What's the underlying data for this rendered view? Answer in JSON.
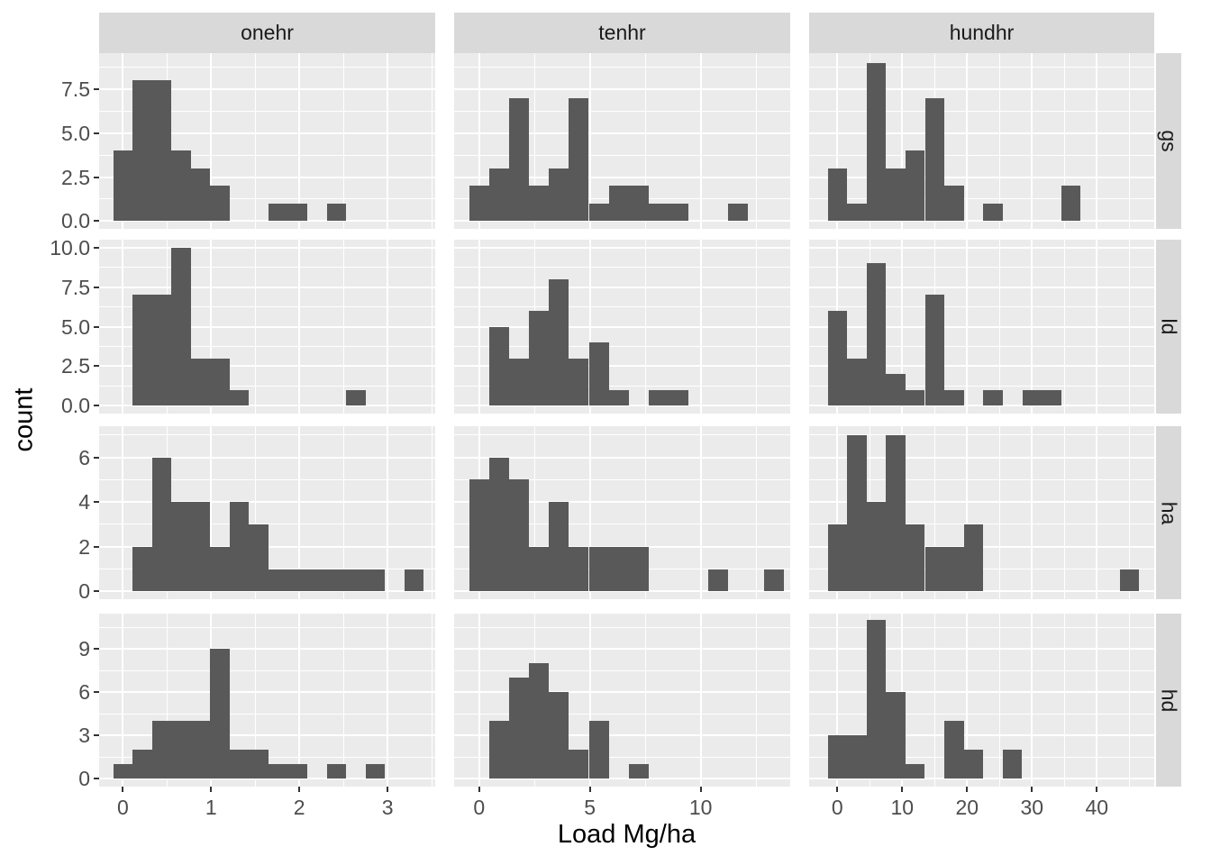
{
  "figure": {
    "xlab": "Load Mg/ha",
    "ylab": "count"
  },
  "colors": {
    "bar_fill": "#595959",
    "panel_background": "#EBEBEB",
    "strip_background": "#D9D9D9",
    "gridline": "#FFFFFF",
    "tick_mark": "#333333",
    "tick_label_text": "#4D4D4D",
    "strip_text": "#1A1A1A",
    "axis_title_text": "#000000",
    "page_background": "#FFFFFF"
  },
  "chart_data": {
    "type": "bar",
    "subtype": "faceted-histogram-grid",
    "title": "",
    "xlabel": "Load Mg/ha",
    "ylabel": "count",
    "grid": "on",
    "facet_columns": [
      "onehr",
      "tenhr",
      "hundhr"
    ],
    "facet_rows": [
      "gs",
      "ld",
      "ha",
      "hd"
    ],
    "columns": [
      {
        "label": "onehr",
        "binwidth": 0.22,
        "xlim": [
          -0.27,
          3.54
        ],
        "xticks": [
          0,
          1,
          2,
          3
        ],
        "xtick_labels": [
          "0",
          "1",
          "2",
          "3"
        ],
        "xminor": [
          0.5,
          1.5,
          2.5,
          3.5
        ]
      },
      {
        "label": "tenhr",
        "binwidth": 0.9,
        "xlim": [
          -1.13,
          14.04
        ],
        "xticks": [
          0,
          5,
          10
        ],
        "xtick_labels": [
          "0",
          "5",
          "10"
        ],
        "xminor": [
          2.5,
          7.5,
          12.5
        ]
      },
      {
        "label": "hundhr",
        "binwidth": 3.0,
        "xlim": [
          -4.35,
          48.85
        ],
        "xticks": [
          0,
          10,
          20,
          30,
          40
        ],
        "xtick_labels": [
          "0",
          "10",
          "20",
          "30",
          "40"
        ],
        "xminor": [
          5,
          15,
          25,
          35,
          45
        ]
      }
    ],
    "rows": [
      {
        "label": "gs",
        "ylim": [
          -0.45,
          9.56
        ],
        "yticks": [
          0,
          2.5,
          5,
          7.5
        ],
        "ytick_labels": [
          "0.0",
          "2.5",
          "5.0",
          "7.5"
        ],
        "yminor": [
          1.25,
          3.75,
          6.25,
          8.75
        ]
      },
      {
        "label": "ld",
        "ylim": [
          -0.5,
          10.5
        ],
        "yticks": [
          0,
          2.5,
          5,
          7.5,
          10
        ],
        "ytick_labels": [
          "0.0",
          "2.5",
          "5.0",
          "7.5",
          "10.0"
        ],
        "yminor": [
          1.25,
          3.75,
          6.25,
          8.75
        ]
      },
      {
        "label": "ha",
        "ylim": [
          -0.35,
          7.39
        ],
        "yticks": [
          0,
          2,
          4,
          6
        ],
        "ytick_labels": [
          "0",
          "2",
          "4",
          "6"
        ],
        "yminor": [
          1,
          3,
          5,
          7
        ]
      },
      {
        "label": "hd",
        "ylim": [
          -0.55,
          11.45
        ],
        "yticks": [
          0,
          3,
          6,
          9
        ],
        "ytick_labels": [
          "0",
          "3",
          "6",
          "9"
        ],
        "yminor": [
          1.5,
          4.5,
          7.5,
          10.5
        ]
      }
    ],
    "panels": [
      {
        "row": "gs",
        "col": "onehr",
        "bins": [
          [
            -0.11,
            4
          ],
          [
            0.11,
            8
          ],
          [
            0.33,
            8
          ],
          [
            0.55,
            4
          ],
          [
            0.77,
            3
          ],
          [
            0.99,
            2
          ],
          [
            1.65,
            1
          ],
          [
            1.87,
            1
          ],
          [
            2.31,
            1
          ]
        ]
      },
      {
        "row": "ld",
        "col": "onehr",
        "bins": [
          [
            0.11,
            7
          ],
          [
            0.33,
            7
          ],
          [
            0.55,
            10
          ],
          [
            0.77,
            3
          ],
          [
            0.99,
            3
          ],
          [
            1.21,
            1
          ],
          [
            2.53,
            1
          ]
        ]
      },
      {
        "row": "ha",
        "col": "onehr",
        "bins": [
          [
            0.11,
            2
          ],
          [
            0.33,
            6
          ],
          [
            0.55,
            4
          ],
          [
            0.77,
            4
          ],
          [
            0.99,
            2
          ],
          [
            1.21,
            4
          ],
          [
            1.43,
            3
          ],
          [
            1.65,
            1
          ],
          [
            1.87,
            1
          ],
          [
            2.09,
            1
          ],
          [
            2.31,
            1
          ],
          [
            2.53,
            1
          ],
          [
            2.75,
            1
          ],
          [
            3.19,
            1
          ]
        ]
      },
      {
        "row": "hd",
        "col": "onehr",
        "bins": [
          [
            -0.11,
            1
          ],
          [
            0.11,
            2
          ],
          [
            0.33,
            4
          ],
          [
            0.55,
            4
          ],
          [
            0.77,
            4
          ],
          [
            0.99,
            9
          ],
          [
            1.21,
            2
          ],
          [
            1.43,
            2
          ],
          [
            1.65,
            1
          ],
          [
            1.87,
            1
          ],
          [
            2.31,
            1
          ],
          [
            2.75,
            1
          ]
        ]
      },
      {
        "row": "gs",
        "col": "tenhr",
        "bins": [
          [
            -0.45,
            2
          ],
          [
            0.45,
            3
          ],
          [
            1.35,
            7
          ],
          [
            2.25,
            2
          ],
          [
            3.15,
            3
          ],
          [
            4.05,
            7
          ],
          [
            4.95,
            1
          ],
          [
            5.85,
            2
          ],
          [
            6.75,
            2
          ],
          [
            7.65,
            1
          ],
          [
            8.55,
            1
          ],
          [
            11.25,
            1
          ]
        ]
      },
      {
        "row": "ld",
        "col": "tenhr",
        "bins": [
          [
            0.45,
            5
          ],
          [
            1.35,
            3
          ],
          [
            2.25,
            6
          ],
          [
            3.15,
            8
          ],
          [
            4.05,
            3
          ],
          [
            4.95,
            4
          ],
          [
            5.85,
            1
          ],
          [
            7.65,
            1
          ],
          [
            8.55,
            1
          ]
        ]
      },
      {
        "row": "ha",
        "col": "tenhr",
        "bins": [
          [
            -0.45,
            5
          ],
          [
            0.45,
            6
          ],
          [
            1.35,
            5
          ],
          [
            2.25,
            2
          ],
          [
            3.15,
            4
          ],
          [
            4.05,
            2
          ],
          [
            4.95,
            2
          ],
          [
            5.85,
            2
          ],
          [
            6.75,
            2
          ],
          [
            10.35,
            1
          ],
          [
            12.85,
            1
          ]
        ]
      },
      {
        "row": "hd",
        "col": "tenhr",
        "bins": [
          [
            0.45,
            4
          ],
          [
            1.35,
            7
          ],
          [
            2.25,
            8
          ],
          [
            3.15,
            6
          ],
          [
            4.05,
            2
          ],
          [
            4.95,
            4
          ],
          [
            6.75,
            1
          ]
        ]
      },
      {
        "row": "gs",
        "col": "hundhr",
        "bins": [
          [
            -1.5,
            3
          ],
          [
            1.5,
            1
          ],
          [
            4.5,
            9
          ],
          [
            7.5,
            3
          ],
          [
            10.5,
            4
          ],
          [
            13.5,
            7
          ],
          [
            16.5,
            2
          ],
          [
            22.5,
            1
          ],
          [
            34.5,
            2
          ]
        ]
      },
      {
        "row": "ld",
        "col": "hundhr",
        "bins": [
          [
            -1.5,
            6
          ],
          [
            1.5,
            3
          ],
          [
            4.5,
            9
          ],
          [
            7.5,
            2
          ],
          [
            10.5,
            1
          ],
          [
            13.5,
            7
          ],
          [
            16.5,
            1
          ],
          [
            22.5,
            1
          ],
          [
            28.5,
            1
          ],
          [
            31.5,
            1
          ]
        ]
      },
      {
        "row": "ha",
        "col": "hundhr",
        "bins": [
          [
            -1.5,
            3
          ],
          [
            1.5,
            7
          ],
          [
            4.5,
            4
          ],
          [
            7.5,
            7
          ],
          [
            10.5,
            3
          ],
          [
            13.5,
            2
          ],
          [
            16.5,
            2
          ],
          [
            19.5,
            3
          ],
          [
            43.5,
            1
          ]
        ]
      },
      {
        "row": "hd",
        "col": "hundhr",
        "bins": [
          [
            -1.5,
            3
          ],
          [
            1.5,
            3
          ],
          [
            4.5,
            11
          ],
          [
            7.5,
            6
          ],
          [
            10.5,
            1
          ],
          [
            16.5,
            4
          ],
          [
            19.5,
            2
          ],
          [
            25.5,
            2
          ]
        ]
      }
    ]
  }
}
